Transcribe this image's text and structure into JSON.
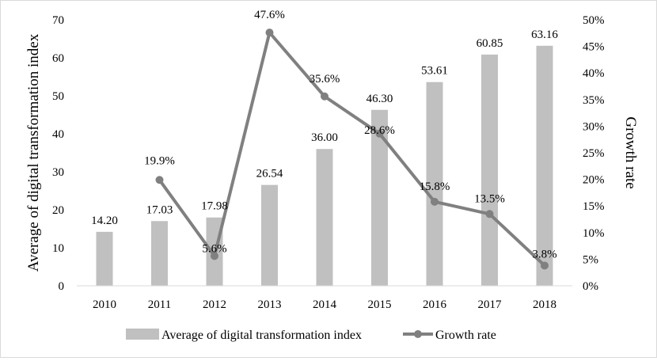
{
  "chart_data": {
    "type": "bar+line",
    "categories": [
      "2010",
      "2011",
      "2012",
      "2013",
      "2014",
      "2015",
      "2016",
      "2017",
      "2018"
    ],
    "series": [
      {
        "name": "Average of digital transformation index",
        "type": "bar",
        "axis": "left",
        "values": [
          14.2,
          17.03,
          17.98,
          26.54,
          36.0,
          46.3,
          53.61,
          60.85,
          63.16
        ],
        "labels": [
          "14.20",
          "17.03",
          "17.98",
          "26.54",
          "36.00",
          "46.30",
          "53.61",
          "60.85",
          "63.16"
        ],
        "color": "#c0c0c0"
      },
      {
        "name": "Growth rate",
        "type": "line",
        "axis": "right",
        "values": [
          null,
          19.9,
          5.6,
          47.6,
          35.6,
          28.6,
          15.8,
          13.5,
          3.8
        ],
        "labels": [
          "",
          "19.9%",
          "5.6%",
          "47.6%",
          "35.6%",
          "28.6%",
          "15.8%",
          "13.5%",
          "3.8%"
        ],
        "color": "#808080"
      }
    ],
    "ylabel": "Average of digital transformation index",
    "y2label": "Growth rate",
    "ylim": [
      0,
      70
    ],
    "y2lim": [
      0,
      50
    ],
    "yticks": [
      "0",
      "10",
      "20",
      "30",
      "40",
      "50",
      "60",
      "70"
    ],
    "y2ticks": [
      "0%",
      "5%",
      "10%",
      "15%",
      "20%",
      "25%",
      "30%",
      "35%",
      "40%",
      "45%",
      "50%"
    ],
    "grid": false,
    "legend": "bottom"
  }
}
